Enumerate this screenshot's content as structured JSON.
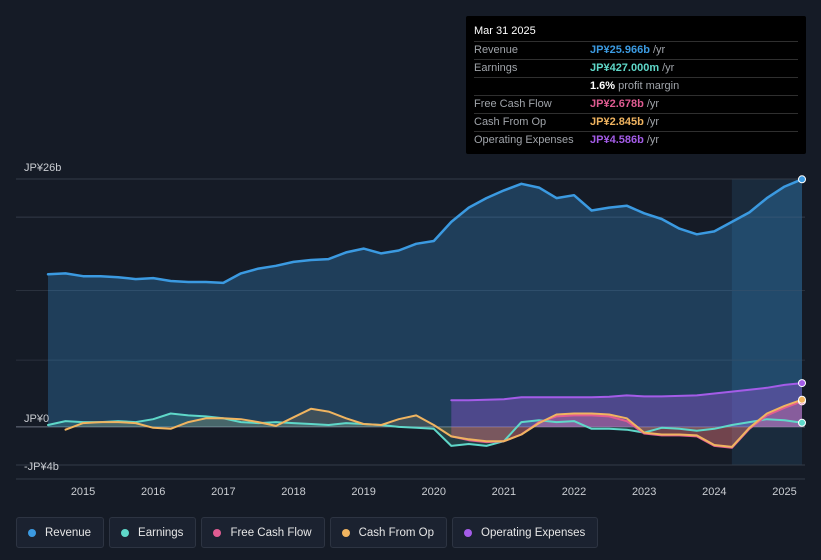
{
  "tooltip": {
    "date": "Mar 31 2025",
    "rows": [
      {
        "label": "Revenue",
        "value": "JP¥25.966b",
        "unit": "/yr",
        "color": "#3b9ae1"
      },
      {
        "label": "Earnings",
        "value": "JP¥427.000m",
        "unit": "/yr",
        "color": "#5fd8c9"
      },
      {
        "label": "",
        "value": "1.6%",
        "unit": "profit margin",
        "color": "#ffffff"
      },
      {
        "label": "Free Cash Flow",
        "value": "JP¥2.678b",
        "unit": "/yr",
        "color": "#e05c92"
      },
      {
        "label": "Cash From Op",
        "value": "JP¥2.845b",
        "unit": "/yr",
        "color": "#f0b460"
      },
      {
        "label": "Operating Expenses",
        "value": "JP¥4.586b",
        "unit": "/yr",
        "color": "#a45ce8"
      }
    ]
  },
  "legend": [
    {
      "label": "Revenue",
      "color": "#3b9ae1"
    },
    {
      "label": "Earnings",
      "color": "#5fd8c9"
    },
    {
      "label": "Free Cash Flow",
      "color": "#e05c92"
    },
    {
      "label": "Cash From Op",
      "color": "#f0b460"
    },
    {
      "label": "Operating Expenses",
      "color": "#a45ce8"
    }
  ],
  "chart_data": {
    "type": "area",
    "title": "",
    "xlabel": "",
    "ylabel": "",
    "ylim": [
      -4,
      26
    ],
    "y_tick_labels": [
      {
        "value": 26,
        "label": "JP¥26b"
      },
      {
        "value": 0,
        "label": "JP¥0"
      },
      {
        "value": -4,
        "label": "-JP¥4b"
      }
    ],
    "x_ticks": [
      2015,
      2016,
      2017,
      2018,
      2019,
      2020,
      2021,
      2022,
      2023,
      2024,
      2025
    ],
    "xlim": [
      2014.5,
      2025.25
    ],
    "highlight_from": 2024.25,
    "series": [
      {
        "name": "Revenue",
        "color": "#3b9ae1",
        "fill": true,
        "points": [
          [
            2014.5,
            16.0
          ],
          [
            2014.75,
            16.1
          ],
          [
            2015.0,
            15.8
          ],
          [
            2015.25,
            15.8
          ],
          [
            2015.5,
            15.7
          ],
          [
            2015.75,
            15.5
          ],
          [
            2016.0,
            15.6
          ],
          [
            2016.25,
            15.3
          ],
          [
            2016.5,
            15.2
          ],
          [
            2016.75,
            15.2
          ],
          [
            2017.0,
            15.1
          ],
          [
            2017.25,
            16.1
          ],
          [
            2017.5,
            16.6
          ],
          [
            2017.75,
            16.9
          ],
          [
            2018.0,
            17.3
          ],
          [
            2018.25,
            17.5
          ],
          [
            2018.5,
            17.6
          ],
          [
            2018.75,
            18.3
          ],
          [
            2019.0,
            18.7
          ],
          [
            2019.25,
            18.2
          ],
          [
            2019.5,
            18.5
          ],
          [
            2019.75,
            19.2
          ],
          [
            2020.0,
            19.5
          ],
          [
            2020.25,
            21.5
          ],
          [
            2020.5,
            23.0
          ],
          [
            2020.75,
            24.0
          ],
          [
            2021.0,
            24.8
          ],
          [
            2021.25,
            25.5
          ],
          [
            2021.5,
            25.1
          ],
          [
            2021.75,
            24.0
          ],
          [
            2022.0,
            24.3
          ],
          [
            2022.25,
            22.7
          ],
          [
            2022.5,
            23.0
          ],
          [
            2022.75,
            23.2
          ],
          [
            2023.0,
            22.4
          ],
          [
            2023.25,
            21.8
          ],
          [
            2023.5,
            20.8
          ],
          [
            2023.75,
            20.2
          ],
          [
            2024.0,
            20.5
          ],
          [
            2024.25,
            21.5
          ],
          [
            2024.5,
            22.5
          ],
          [
            2024.75,
            24.0
          ],
          [
            2025.0,
            25.2
          ],
          [
            2025.25,
            25.97
          ]
        ]
      },
      {
        "name": "Earnings",
        "color": "#5fd8c9",
        "fill": true,
        "points": [
          [
            2014.5,
            0.2
          ],
          [
            2014.75,
            0.6
          ],
          [
            2015.0,
            0.5
          ],
          [
            2015.25,
            0.5
          ],
          [
            2015.5,
            0.6
          ],
          [
            2015.75,
            0.5
          ],
          [
            2016.0,
            0.8
          ],
          [
            2016.25,
            1.4
          ],
          [
            2016.5,
            1.2
          ],
          [
            2016.75,
            1.1
          ],
          [
            2017.0,
            0.9
          ],
          [
            2017.25,
            0.5
          ],
          [
            2017.5,
            0.4
          ],
          [
            2017.75,
            0.5
          ],
          [
            2018.0,
            0.4
          ],
          [
            2018.25,
            0.3
          ],
          [
            2018.5,
            0.2
          ],
          [
            2018.75,
            0.4
          ],
          [
            2019.0,
            0.3
          ],
          [
            2019.25,
            0.2
          ],
          [
            2019.5,
            0.0
          ],
          [
            2019.75,
            -0.1
          ],
          [
            2020.0,
            -0.2
          ],
          [
            2020.25,
            -2.0
          ],
          [
            2020.5,
            -1.8
          ],
          [
            2020.75,
            -2.0
          ],
          [
            2021.0,
            -1.5
          ],
          [
            2021.25,
            0.5
          ],
          [
            2021.5,
            0.7
          ],
          [
            2021.75,
            0.5
          ],
          [
            2022.0,
            0.6
          ],
          [
            2022.25,
            -0.2
          ],
          [
            2022.5,
            -0.2
          ],
          [
            2022.75,
            -0.3
          ],
          [
            2023.0,
            -0.6
          ],
          [
            2023.25,
            -0.1
          ],
          [
            2023.5,
            -0.2
          ],
          [
            2023.75,
            -0.4
          ],
          [
            2024.0,
            -0.2
          ],
          [
            2024.25,
            0.2
          ],
          [
            2024.5,
            0.5
          ],
          [
            2024.75,
            0.8
          ],
          [
            2025.0,
            0.7
          ],
          [
            2025.25,
            0.43
          ]
        ]
      },
      {
        "name": "Free Cash Flow",
        "color": "#e05c92",
        "fill": true,
        "points": [
          [
            2020.25,
            -1.0
          ],
          [
            2020.5,
            -1.4
          ],
          [
            2020.75,
            -1.6
          ],
          [
            2021.0,
            -1.5
          ],
          [
            2021.25,
            -0.8
          ],
          [
            2021.5,
            0.5
          ],
          [
            2021.75,
            1.1
          ],
          [
            2022.0,
            1.2
          ],
          [
            2022.25,
            1.2
          ],
          [
            2022.5,
            1.1
          ],
          [
            2022.75,
            0.6
          ],
          [
            2023.0,
            -0.7
          ],
          [
            2023.25,
            -0.9
          ],
          [
            2023.5,
            -0.9
          ],
          [
            2023.75,
            -1.0
          ],
          [
            2024.0,
            -2.0
          ],
          [
            2024.25,
            -2.2
          ],
          [
            2024.5,
            -0.2
          ],
          [
            2024.75,
            1.2
          ],
          [
            2025.0,
            2.0
          ],
          [
            2025.25,
            2.68
          ]
        ]
      },
      {
        "name": "Cash From Op",
        "color": "#f0b460",
        "fill": true,
        "points": [
          [
            2014.75,
            -0.3
          ],
          [
            2015.0,
            0.4
          ],
          [
            2015.25,
            0.5
          ],
          [
            2015.5,
            0.5
          ],
          [
            2015.75,
            0.4
          ],
          [
            2016.0,
            -0.1
          ],
          [
            2016.25,
            -0.2
          ],
          [
            2016.5,
            0.5
          ],
          [
            2016.75,
            0.9
          ],
          [
            2017.0,
            0.9
          ],
          [
            2017.25,
            0.8
          ],
          [
            2017.5,
            0.5
          ],
          [
            2017.75,
            0.1
          ],
          [
            2018.0,
            1.0
          ],
          [
            2018.25,
            1.9
          ],
          [
            2018.5,
            1.6
          ],
          [
            2018.75,
            0.9
          ],
          [
            2019.0,
            0.3
          ],
          [
            2019.25,
            0.2
          ],
          [
            2019.5,
            0.8
          ],
          [
            2019.75,
            1.2
          ],
          [
            2020.0,
            0.2
          ],
          [
            2020.25,
            -1.0
          ],
          [
            2020.5,
            -1.3
          ],
          [
            2020.75,
            -1.5
          ],
          [
            2021.0,
            -1.5
          ],
          [
            2021.25,
            -0.8
          ],
          [
            2021.5,
            0.4
          ],
          [
            2021.75,
            1.3
          ],
          [
            2022.0,
            1.4
          ],
          [
            2022.25,
            1.4
          ],
          [
            2022.5,
            1.3
          ],
          [
            2022.75,
            0.9
          ],
          [
            2023.0,
            -0.6
          ],
          [
            2023.25,
            -0.8
          ],
          [
            2023.5,
            -0.8
          ],
          [
            2023.75,
            -0.9
          ],
          [
            2024.0,
            -1.9
          ],
          [
            2024.25,
            -2.1
          ],
          [
            2024.5,
            -0.1
          ],
          [
            2024.75,
            1.4
          ],
          [
            2025.0,
            2.2
          ],
          [
            2025.25,
            2.85
          ]
        ]
      },
      {
        "name": "Operating Expenses",
        "color": "#a45ce8",
        "fill": true,
        "points": [
          [
            2020.25,
            2.8
          ],
          [
            2020.5,
            2.8
          ],
          [
            2020.75,
            2.85
          ],
          [
            2021.0,
            2.9
          ],
          [
            2021.25,
            3.1
          ],
          [
            2021.5,
            3.1
          ],
          [
            2021.75,
            3.1
          ],
          [
            2022.0,
            3.1
          ],
          [
            2022.25,
            3.1
          ],
          [
            2022.5,
            3.15
          ],
          [
            2022.75,
            3.3
          ],
          [
            2023.0,
            3.2
          ],
          [
            2023.25,
            3.2
          ],
          [
            2023.5,
            3.25
          ],
          [
            2023.75,
            3.3
          ],
          [
            2024.0,
            3.5
          ],
          [
            2024.25,
            3.7
          ],
          [
            2024.5,
            3.9
          ],
          [
            2024.75,
            4.1
          ],
          [
            2025.0,
            4.4
          ],
          [
            2025.25,
            4.59
          ]
        ]
      }
    ]
  }
}
